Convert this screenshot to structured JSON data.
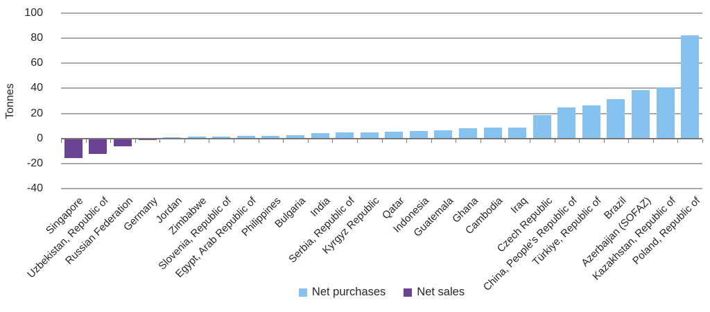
{
  "chart_data": {
    "type": "bar",
    "ylabel": "Tonnes",
    "ylim": [
      -40,
      100
    ],
    "ytick_interval": 20,
    "yticks": [
      100,
      80,
      60,
      40,
      20,
      0,
      -20,
      -40
    ],
    "grid": true,
    "legend_position": "bottom",
    "colors": {
      "net_purchases": "#85C2F0",
      "net_sales": "#6B4191"
    },
    "legend": {
      "items": [
        {
          "key": "net_purchases",
          "label": "Net purchases"
        },
        {
          "key": "net_sales",
          "label": "Net sales"
        }
      ]
    },
    "bars": [
      {
        "country": "Singapore",
        "tonnes": -15.5,
        "series": "net_sales"
      },
      {
        "country": "Uzbekistan, Republic of",
        "tonnes": -12.5,
        "series": "net_sales"
      },
      {
        "country": "Russian Federation",
        "tonnes": -6,
        "series": "net_sales"
      },
      {
        "country": "Germany",
        "tonnes": -1.5,
        "series": "net_sales"
      },
      {
        "country": "Jordan",
        "tonnes": 1.2,
        "series": "net_purchases"
      },
      {
        "country": "Zimbabwe",
        "tonnes": 1.3,
        "series": "net_purchases"
      },
      {
        "country": "Slovenia, Republic of",
        "tonnes": 1.5,
        "series": "net_purchases"
      },
      {
        "country": "Egypt, Arab Republic of",
        "tonnes": 2.2,
        "series": "net_purchases"
      },
      {
        "country": "Philippines",
        "tonnes": 2.3,
        "series": "net_purchases"
      },
      {
        "country": "Bulgaria",
        "tonnes": 2.4,
        "series": "net_purchases"
      },
      {
        "country": "India",
        "tonnes": 4.4,
        "series": "net_purchases"
      },
      {
        "country": "Serbia, Republic of",
        "tonnes": 4.6,
        "series": "net_purchases"
      },
      {
        "country": "Kyrgyz Republic",
        "tonnes": 4.9,
        "series": "net_purchases"
      },
      {
        "country": "Qatar",
        "tonnes": 5.4,
        "series": "net_purchases"
      },
      {
        "country": "Indonesia",
        "tonnes": 5.9,
        "series": "net_purchases"
      },
      {
        "country": "Guatemala",
        "tonnes": 6.4,
        "series": "net_purchases"
      },
      {
        "country": "Ghana",
        "tonnes": 7.9,
        "series": "net_purchases"
      },
      {
        "country": "Cambodia",
        "tonnes": 8.6,
        "series": "net_purchases"
      },
      {
        "country": "Iraq",
        "tonnes": 8.9,
        "series": "net_purchases"
      },
      {
        "country": "Czech Republic",
        "tonnes": 18.5,
        "series": "net_purchases"
      },
      {
        "country": "China, People's Republic of",
        "tonnes": 25,
        "series": "net_purchases"
      },
      {
        "country": "Türkiye, Republic of",
        "tonnes": 26.5,
        "series": "net_purchases"
      },
      {
        "country": "Brazil",
        "tonnes": 31.5,
        "series": "net_purchases"
      },
      {
        "country": "Azerbaijan (SOFAZ)",
        "tonnes": 38.5,
        "series": "net_purchases"
      },
      {
        "country": "Kazakhstan, Republic of",
        "tonnes": 41,
        "series": "net_purchases"
      },
      {
        "country": "Poland, Republic of",
        "tonnes": 82.5,
        "series": "net_purchases"
      }
    ]
  }
}
